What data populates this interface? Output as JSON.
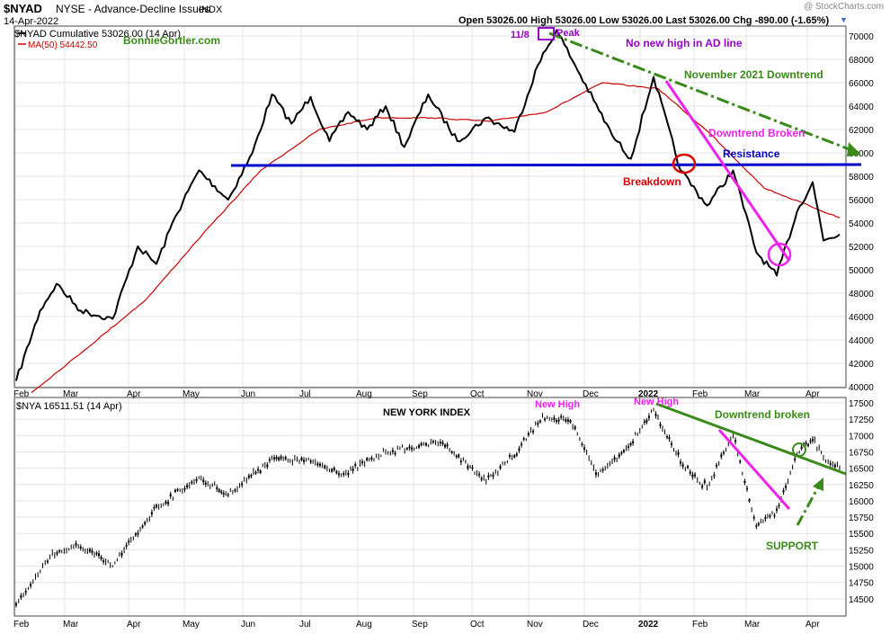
{
  "header": {
    "symbol": "$NYAD",
    "exchange": "NYSE - Advance-Decline Issues",
    "type": "INDX",
    "date": "14-Apr-2022",
    "ohlc": "Open 53026.00  High 53026.00  Low 53026.00  Last 53026.00  Chg -890.00 (-1.65%)",
    "watermark": "@ StockCharts.com"
  },
  "colors": {
    "price_line": "#000000",
    "ma_line": "#cc0000",
    "resistance": "#0000cc",
    "magenta": "#ee22ee",
    "green": "#3a8a1a",
    "purple": "#9900cc",
    "red": "#dd0000",
    "grid": "#e4e4e4"
  },
  "legend": {
    "nyad": "$NYAD Cumulative 53026.00 (14 Apr)",
    "ma50": "MA(50) 54442.50",
    "site": "BonnieGortler.com",
    "nya": "$NYA 16511.51 (14 Apr)"
  },
  "annotations": {
    "peak_date": "11/8",
    "peak": "Peak",
    "no_new_high": "No new high in AD line",
    "nov_downtrend": "November 2021  Downtrend",
    "downtrend_broken_top": "Downtrend Broken",
    "resistance": "Resistance",
    "breakdown": "Breakdown",
    "new_york_index": "NEW YORK INDEX",
    "new_high_1": "New High",
    "new_high_2": "New High",
    "downtrend_broken_bottom": "Downtrend broken",
    "support": "SUPPORT"
  },
  "chart_data": [
    {
      "type": "line",
      "name": "$NYAD Cumulative",
      "ylim": [
        40000,
        70000
      ],
      "yticks": [
        40000,
        42000,
        44000,
        46000,
        48000,
        50000,
        52000,
        54000,
        56000,
        58000,
        60000,
        62000,
        64000,
        66000,
        68000,
        70000
      ],
      "x_months": [
        "Feb",
        "Mar",
        "Apr",
        "May",
        "Jun",
        "Jul",
        "Aug",
        "Sep",
        "Oct",
        "Nov",
        "Dec",
        "2022",
        "Feb",
        "Mar",
        "Apr"
      ],
      "keypoints": [
        {
          "x": "Feb 2021",
          "y": 40500
        },
        {
          "x": "Feb 2021",
          "y": 46500
        },
        {
          "x": "Feb 2021",
          "y": 48800
        },
        {
          "x": "Mar 2021",
          "y": 46500
        },
        {
          "x": "Mar 2021",
          "y": 45800
        },
        {
          "x": "Apr 2021",
          "y": 52000
        },
        {
          "x": "Apr 2021",
          "y": 50500
        },
        {
          "x": "Apr 2021",
          "y": 54500
        },
        {
          "x": "May 2021",
          "y": 58500
        },
        {
          "x": "May 2021",
          "y": 56000
        },
        {
          "x": "Jun 2021",
          "y": 60000
        },
        {
          "x": "Jun 2021",
          "y": 65000
        },
        {
          "x": "Jun 2021",
          "y": 62500
        },
        {
          "x": "Jul 2021",
          "y": 64800
        },
        {
          "x": "Jul 2021",
          "y": 61000
        },
        {
          "x": "Jul 2021",
          "y": 63500
        },
        {
          "x": "Aug 2021",
          "y": 62000
        },
        {
          "x": "Aug 2021",
          "y": 64000
        },
        {
          "x": "Aug 2021",
          "y": 60500
        },
        {
          "x": "Sep 2021",
          "y": 65000
        },
        {
          "x": "Sep 2021",
          "y": 61000
        },
        {
          "x": "Oct 2021",
          "y": 63000
        },
        {
          "x": "Oct 2021",
          "y": 61800
        },
        {
          "x": "Nov 2021",
          "y": 67500
        },
        {
          "x": "Nov 2021",
          "y": 70500
        },
        {
          "x": "Nov 2021",
          "y": 67500
        },
        {
          "x": "Dec 2021",
          "y": 64500
        },
        {
          "x": "Dec 2021",
          "y": 61500
        },
        {
          "x": "Dec 2021",
          "y": 59500
        },
        {
          "x": "Jan 2022",
          "y": 66500
        },
        {
          "x": "Jan 2022",
          "y": 58500
        },
        {
          "x": "Feb 2022",
          "y": 55500
        },
        {
          "x": "Feb 2022",
          "y": 58500
        },
        {
          "x": "Mar 2022",
          "y": 51500
        },
        {
          "x": "Mar 2022",
          "y": 49500
        },
        {
          "x": "Mar 2022",
          "y": 55000
        },
        {
          "x": "Apr 2022",
          "y": 57500
        },
        {
          "x": "Apr 2022",
          "y": 52500
        },
        {
          "x": "Apr 2022",
          "y": 53026
        }
      ],
      "ma50_keypoints": [
        {
          "x": "Feb 2021",
          "y": 39500
        },
        {
          "x": "Mar 2021",
          "y": 43000
        },
        {
          "x": "Apr 2021",
          "y": 47500
        },
        {
          "x": "May 2021",
          "y": 53000
        },
        {
          "x": "Jun 2021",
          "y": 58500
        },
        {
          "x": "Jul 2021",
          "y": 62000
        },
        {
          "x": "Aug 2021",
          "y": 63000
        },
        {
          "x": "Sep 2021",
          "y": 63000
        },
        {
          "x": "Oct 2021",
          "y": 62700
        },
        {
          "x": "Nov 2021",
          "y": 63500
        },
        {
          "x": "Dec 2021",
          "y": 66000
        },
        {
          "x": "Jan 2022",
          "y": 65500
        },
        {
          "x": "Feb 2022",
          "y": 61500
        },
        {
          "x": "Mar 2022",
          "y": 57000
        },
        {
          "x": "Apr 2022",
          "y": 54442.5
        }
      ],
      "resistance_level": 59300
    },
    {
      "type": "bar",
      "name": "$NYA",
      "ylim": [
        14250,
        17500
      ],
      "yticks": [
        14500,
        14750,
        15000,
        15250,
        15500,
        15750,
        16000,
        16250,
        16500,
        16750,
        17000,
        17250,
        17500
      ],
      "x_months": [
        "Feb",
        "Mar",
        "Apr",
        "May",
        "Jun",
        "Jul",
        "Aug",
        "Sep",
        "Oct",
        "Nov",
        "Dec",
        "2022",
        "Feb",
        "Mar",
        "Apr"
      ],
      "keypoints": [
        {
          "x": "Feb 2021",
          "y": 14400
        },
        {
          "x": "Feb 2021",
          "y": 15200
        },
        {
          "x": "Mar 2021",
          "y": 15300
        },
        {
          "x": "Mar 2021",
          "y": 15000
        },
        {
          "x": "Apr 2021",
          "y": 15900
        },
        {
          "x": "May 2021",
          "y": 16350
        },
        {
          "x": "May 2021",
          "y": 16100
        },
        {
          "x": "Jun 2021",
          "y": 16650
        },
        {
          "x": "Jul 2021",
          "y": 16600
        },
        {
          "x": "Jul 2021",
          "y": 16400
        },
        {
          "x": "Aug 2021",
          "y": 16750
        },
        {
          "x": "Sep 2021",
          "y": 16900
        },
        {
          "x": "Oct 2021",
          "y": 16300
        },
        {
          "x": "Oct 2021",
          "y": 16700
        },
        {
          "x": "Nov 2021",
          "y": 17300
        },
        {
          "x": "Nov 2021",
          "y": 17200
        },
        {
          "x": "Dec 2021",
          "y": 16400
        },
        {
          "x": "Dec 2021",
          "y": 16800
        },
        {
          "x": "Jan 2022",
          "y": 17400
        },
        {
          "x": "Jan 2022",
          "y": 16600
        },
        {
          "x": "Feb 2022",
          "y": 16200
        },
        {
          "x": "Feb 2022",
          "y": 17000
        },
        {
          "x": "Mar 2022",
          "y": 15600
        },
        {
          "x": "Mar 2022",
          "y": 15850
        },
        {
          "x": "Mar 2022",
          "y": 16700
        },
        {
          "x": "Apr 2022",
          "y": 16950
        },
        {
          "x": "Apr 2022",
          "y": 16650
        },
        {
          "x": "Apr 2022",
          "y": 16511.51
        }
      ]
    }
  ]
}
